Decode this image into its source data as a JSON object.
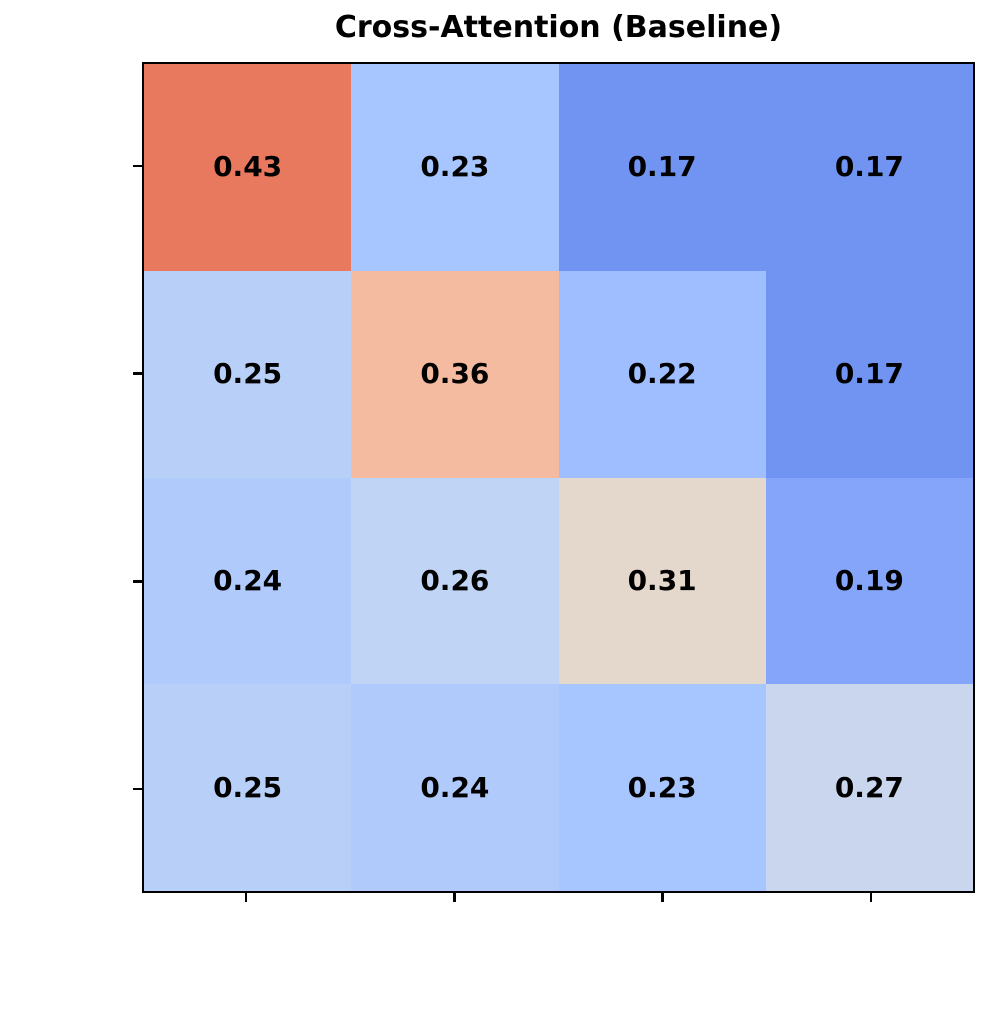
{
  "chart_data": {
    "type": "heatmap",
    "title": "Cross-Attention (Baseline)",
    "colormap": "coolwarm",
    "rows": 4,
    "cols": 4,
    "values": [
      [
        0.43,
        0.23,
        0.17,
        0.17
      ],
      [
        0.25,
        0.36,
        0.22,
        0.17
      ],
      [
        0.24,
        0.26,
        0.31,
        0.19
      ],
      [
        0.25,
        0.24,
        0.23,
        0.27
      ]
    ],
    "cell_labels": [
      [
        "0.43",
        "0.23",
        "0.17",
        "0.17"
      ],
      [
        "0.25",
        "0.36",
        "0.22",
        "0.17"
      ],
      [
        "0.24",
        "0.26",
        "0.31",
        "0.19"
      ],
      [
        "0.25",
        "0.24",
        "0.23",
        "0.27"
      ]
    ],
    "cell_colors": [
      [
        "#E8795F",
        "#A7C5FE",
        "#7194F3",
        "#7194F3"
      ],
      [
        "#B8CFF7",
        "#F5BBA0",
        "#9FBEFF",
        "#7194F3"
      ],
      [
        "#B0CAFC",
        "#C0D4F5",
        "#E4D8CD",
        "#84A5F9"
      ],
      [
        "#B8CFF7",
        "#B0CAFC",
        "#A7C5FE",
        "#C9D6EE"
      ]
    ],
    "label_color": "#000000",
    "axis_color": "#000000",
    "background_color": "#FFFFFF",
    "x_ticks_count": 4,
    "y_ticks_count": 4,
    "tick_labels_visible": false,
    "xlabel": "",
    "ylabel": "",
    "grid": false,
    "legend": "none",
    "colorbar": false
  }
}
